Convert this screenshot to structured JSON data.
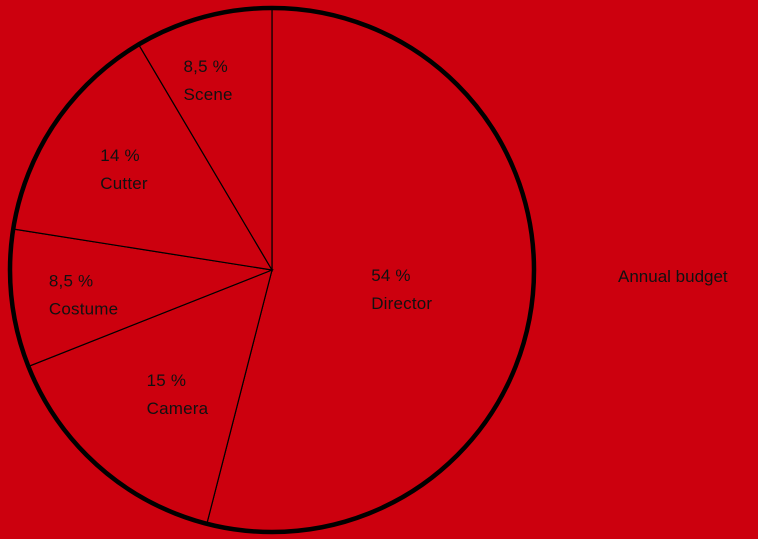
{
  "background": "#cc000e",
  "slice_fill": "#cc000e",
  "outline_color": "#000000",
  "side_label": "Annual budget",
  "chart_data": {
    "type": "pie",
    "title": "",
    "legend": "none",
    "slices": [
      {
        "name": "Director",
        "value": 54,
        "value_label": "54 %"
      },
      {
        "name": "Camera",
        "value": 15,
        "value_label": "15 %"
      },
      {
        "name": "Costume",
        "value": 8.5,
        "value_label": "8,5 %"
      },
      {
        "name": "Cutter",
        "value": 14,
        "value_label": "14 %"
      },
      {
        "name": "Scene",
        "value": 8.5,
        "value_label": "8,5 %"
      }
    ]
  }
}
